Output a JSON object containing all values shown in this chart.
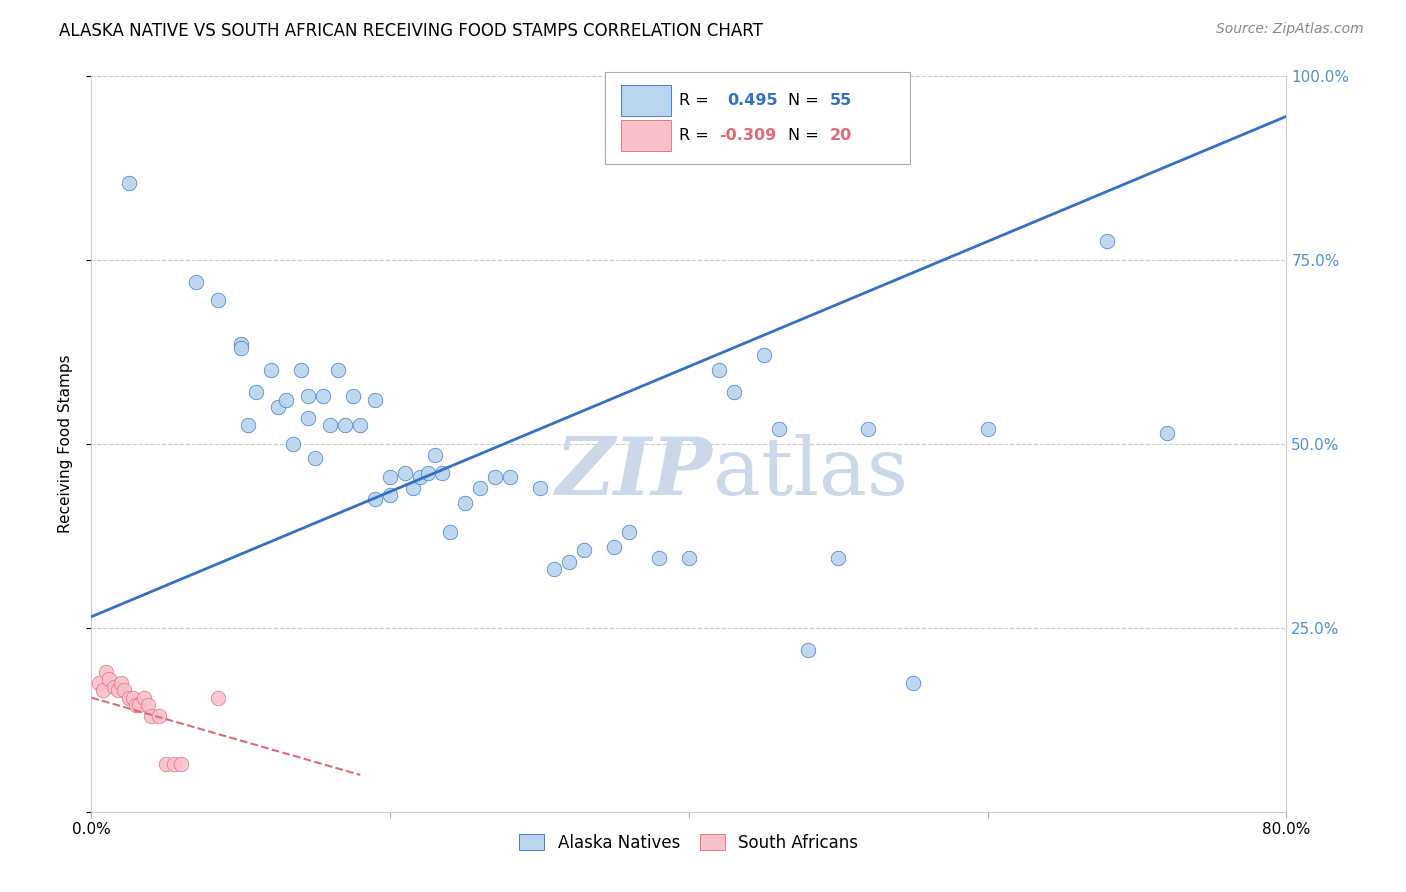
{
  "title": "ALASKA NATIVE VS SOUTH AFRICAN RECEIVING FOOD STAMPS CORRELATION CHART",
  "source": "Source: ZipAtlas.com",
  "ylabel": "Receiving Food Stamps",
  "xlim": [
    0.0,
    0.8
  ],
  "ylim": [
    0.0,
    1.0
  ],
  "xticks": [
    0.0,
    0.2,
    0.4,
    0.6,
    0.8
  ],
  "xticklabels": [
    "0.0%",
    "",
    "",
    "",
    "80.0%"
  ],
  "yticks": [
    0.0,
    0.25,
    0.5,
    0.75,
    1.0
  ],
  "right_yticklabels": [
    "",
    "25.0%",
    "50.0%",
    "75.0%",
    "100.0%"
  ],
  "blue_R": "0.495",
  "blue_N": "55",
  "pink_R": "-0.309",
  "pink_N": "20",
  "blue_scatter_x": [
    0.025,
    0.07,
    0.085,
    0.1,
    0.1,
    0.105,
    0.11,
    0.12,
    0.125,
    0.13,
    0.135,
    0.14,
    0.145,
    0.145,
    0.15,
    0.155,
    0.16,
    0.165,
    0.17,
    0.175,
    0.18,
    0.19,
    0.19,
    0.2,
    0.2,
    0.21,
    0.215,
    0.22,
    0.225,
    0.23,
    0.235,
    0.24,
    0.25,
    0.26,
    0.27,
    0.28,
    0.3,
    0.31,
    0.32,
    0.33,
    0.35,
    0.36,
    0.38,
    0.4,
    0.42,
    0.43,
    0.45,
    0.46,
    0.48,
    0.5,
    0.52,
    0.55,
    0.6,
    0.68,
    0.72
  ],
  "blue_scatter_y": [
    0.855,
    0.72,
    0.695,
    0.635,
    0.63,
    0.525,
    0.57,
    0.6,
    0.55,
    0.56,
    0.5,
    0.6,
    0.565,
    0.535,
    0.48,
    0.565,
    0.525,
    0.6,
    0.525,
    0.565,
    0.525,
    0.56,
    0.425,
    0.43,
    0.455,
    0.46,
    0.44,
    0.455,
    0.46,
    0.485,
    0.46,
    0.38,
    0.42,
    0.44,
    0.455,
    0.455,
    0.44,
    0.33,
    0.34,
    0.355,
    0.36,
    0.38,
    0.345,
    0.345,
    0.6,
    0.57,
    0.62,
    0.52,
    0.22,
    0.345,
    0.52,
    0.175,
    0.52,
    0.775,
    0.515
  ],
  "pink_scatter_x": [
    0.005,
    0.008,
    0.01,
    0.012,
    0.015,
    0.018,
    0.02,
    0.022,
    0.025,
    0.028,
    0.03,
    0.032,
    0.035,
    0.038,
    0.04,
    0.045,
    0.05,
    0.055,
    0.06,
    0.085
  ],
  "pink_scatter_y": [
    0.175,
    0.165,
    0.19,
    0.18,
    0.17,
    0.165,
    0.175,
    0.165,
    0.155,
    0.155,
    0.145,
    0.145,
    0.155,
    0.145,
    0.13,
    0.13,
    0.065,
    0.065,
    0.065,
    0.155
  ],
  "blue_line_x": [
    0.0,
    0.8
  ],
  "blue_line_y": [
    0.265,
    0.945
  ],
  "pink_line_x": [
    0.0,
    0.18
  ],
  "pink_line_y": [
    0.155,
    0.05
  ],
  "scatter_color_blue": "#b8d4ee",
  "scatter_color_pink": "#f9c0cc",
  "line_color_blue": "#3070c8",
  "line_color_pink": "#e06878",
  "background_color": "#ffffff",
  "grid_color": "#cccccc",
  "watermark_color": "#ccd8e8",
  "legend_label_blue": "Alaska Natives",
  "legend_label_pink": "South Africans",
  "title_fontsize": 12,
  "axis_label_fontsize": 11,
  "tick_fontsize": 11,
  "tick_color_right": "#5090d0",
  "source_fontsize": 10
}
